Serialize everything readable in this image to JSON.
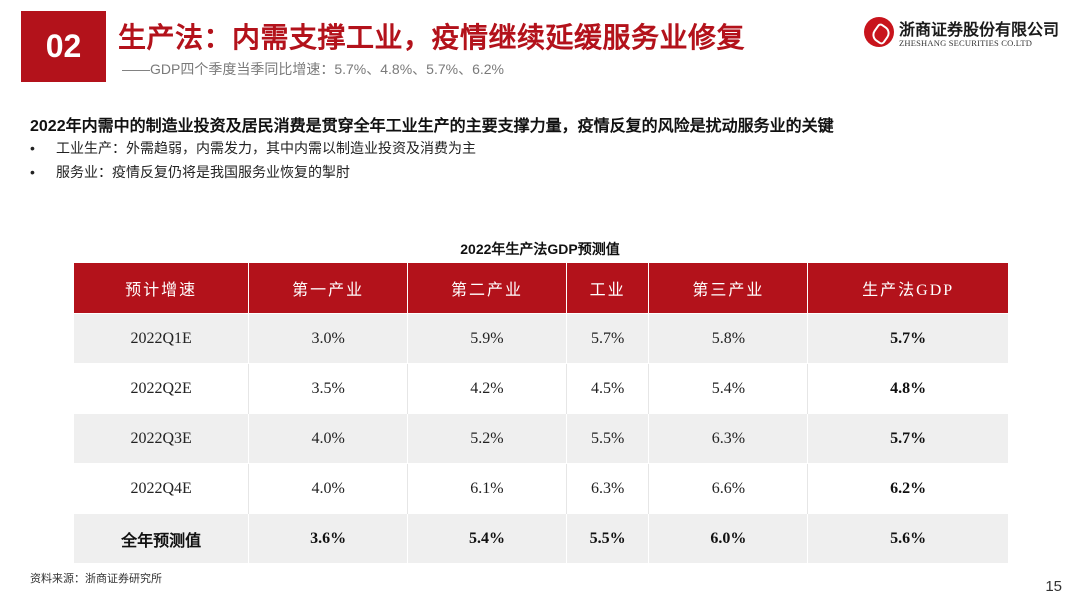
{
  "header": {
    "section_number": "02",
    "title": "生产法：内需支撑工业，疫情继续延缓服务业修复",
    "subtitle": "——GDP四个季度当季同比增速：5.7%、4.8%、5.7%、6.2%"
  },
  "logo": {
    "company_cn": "浙商证券股份有限公司",
    "company_en": "ZHESHANG SECURITIES CO.LTD"
  },
  "body": {
    "lead": "2022年内需中的制造业投资及居民消费是贯穿全年工业生产的主要支撑力量，疫情反复的风险是扰动服务业的关键",
    "bullets": [
      "工业生产：外需趋弱，内需发力，其中内需以制造业投资及消费为主",
      "服务业：疫情反复仍将是我国服务业恢复的掣肘"
    ]
  },
  "table": {
    "title": "2022年生产法GDP预测值",
    "headers": [
      "预计增速",
      "第一产业",
      "第二产业",
      "工业",
      "第三产业",
      "生产法GDP"
    ],
    "rows": [
      [
        "2022Q1E",
        "3.0%",
        "5.9%",
        "5.7%",
        "5.8%",
        "5.7%"
      ],
      [
        "2022Q2E",
        "3.5%",
        "4.2%",
        "4.5%",
        "5.4%",
        "4.8%"
      ],
      [
        "2022Q3E",
        "4.0%",
        "5.2%",
        "5.5%",
        "6.3%",
        "5.7%"
      ],
      [
        "2022Q4E",
        "4.0%",
        "6.1%",
        "6.3%",
        "6.6%",
        "6.2%"
      ],
      [
        "全年预测值",
        "3.6%",
        "5.4%",
        "5.5%",
        "6.0%",
        "5.6%"
      ]
    ]
  },
  "footer": {
    "source": "资料来源：浙商证券研究所",
    "page_number": "15"
  },
  "colors": {
    "accent": "#b3121b",
    "row_shade": "#efefef"
  }
}
